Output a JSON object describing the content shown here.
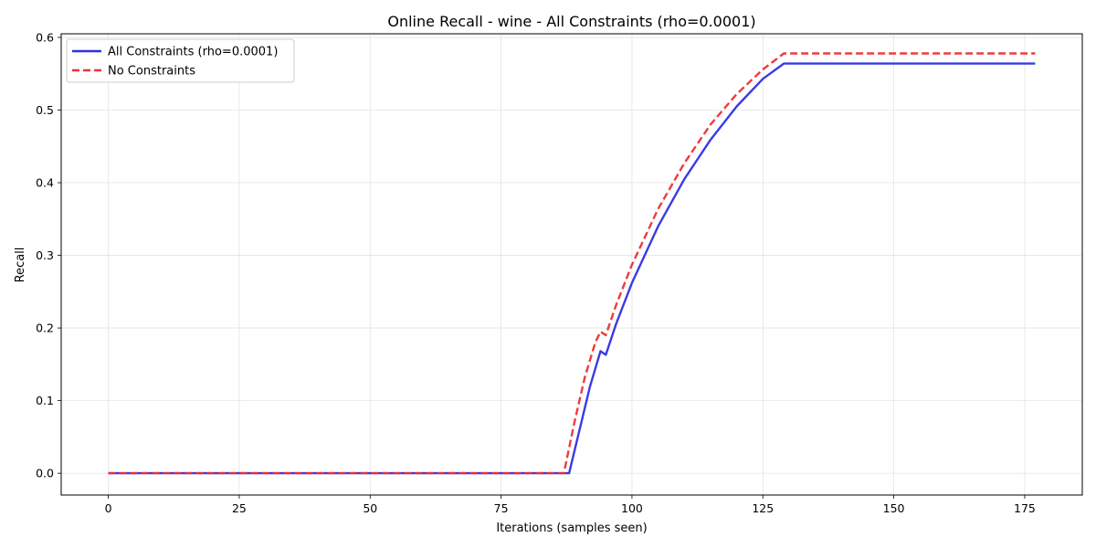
{
  "chart_data": {
    "type": "line",
    "title": "Online Recall - wine - All Constraints (rho=0.0001)",
    "xlabel": "Iterations (samples seen)",
    "ylabel": "Recall",
    "xlim": [
      -9,
      186
    ],
    "ylim": [
      -0.03,
      0.605
    ],
    "xticks": [
      0,
      25,
      50,
      75,
      100,
      125,
      150,
      175
    ],
    "yticks": [
      0.0,
      0.1,
      0.2,
      0.3,
      0.4,
      0.5,
      0.6
    ],
    "xtick_labels": [
      "0",
      "25",
      "50",
      "75",
      "100",
      "125",
      "150",
      "175"
    ],
    "ytick_labels": [
      "0.0",
      "0.1",
      "0.2",
      "0.3",
      "0.4",
      "0.5",
      "0.6"
    ],
    "grid": true,
    "legend_position": "upper-left",
    "series": [
      {
        "name": "All Constraints (rho=0.0001)",
        "color": "#2f2fe6",
        "style": "solid",
        "x": [
          0,
          88,
          90,
          92,
          94,
          95,
          97,
          100,
          105,
          110,
          115,
          120,
          125,
          129,
          177
        ],
        "y": [
          0.0,
          0.0,
          0.06,
          0.12,
          0.168,
          0.163,
          0.206,
          0.262,
          0.34,
          0.405,
          0.459,
          0.505,
          0.543,
          0.564,
          0.564
        ]
      },
      {
        "name": "No Constraints",
        "color": "#ee3030",
        "style": "dashed",
        "x": [
          0,
          87,
          89,
          91,
          93,
          94,
          95,
          97,
          100,
          105,
          110,
          115,
          120,
          125,
          129,
          177
        ],
        "y": [
          0.0,
          0.0,
          0.07,
          0.132,
          0.18,
          0.195,
          0.19,
          0.232,
          0.287,
          0.364,
          0.427,
          0.48,
          0.522,
          0.556,
          0.578,
          0.578
        ]
      }
    ]
  }
}
